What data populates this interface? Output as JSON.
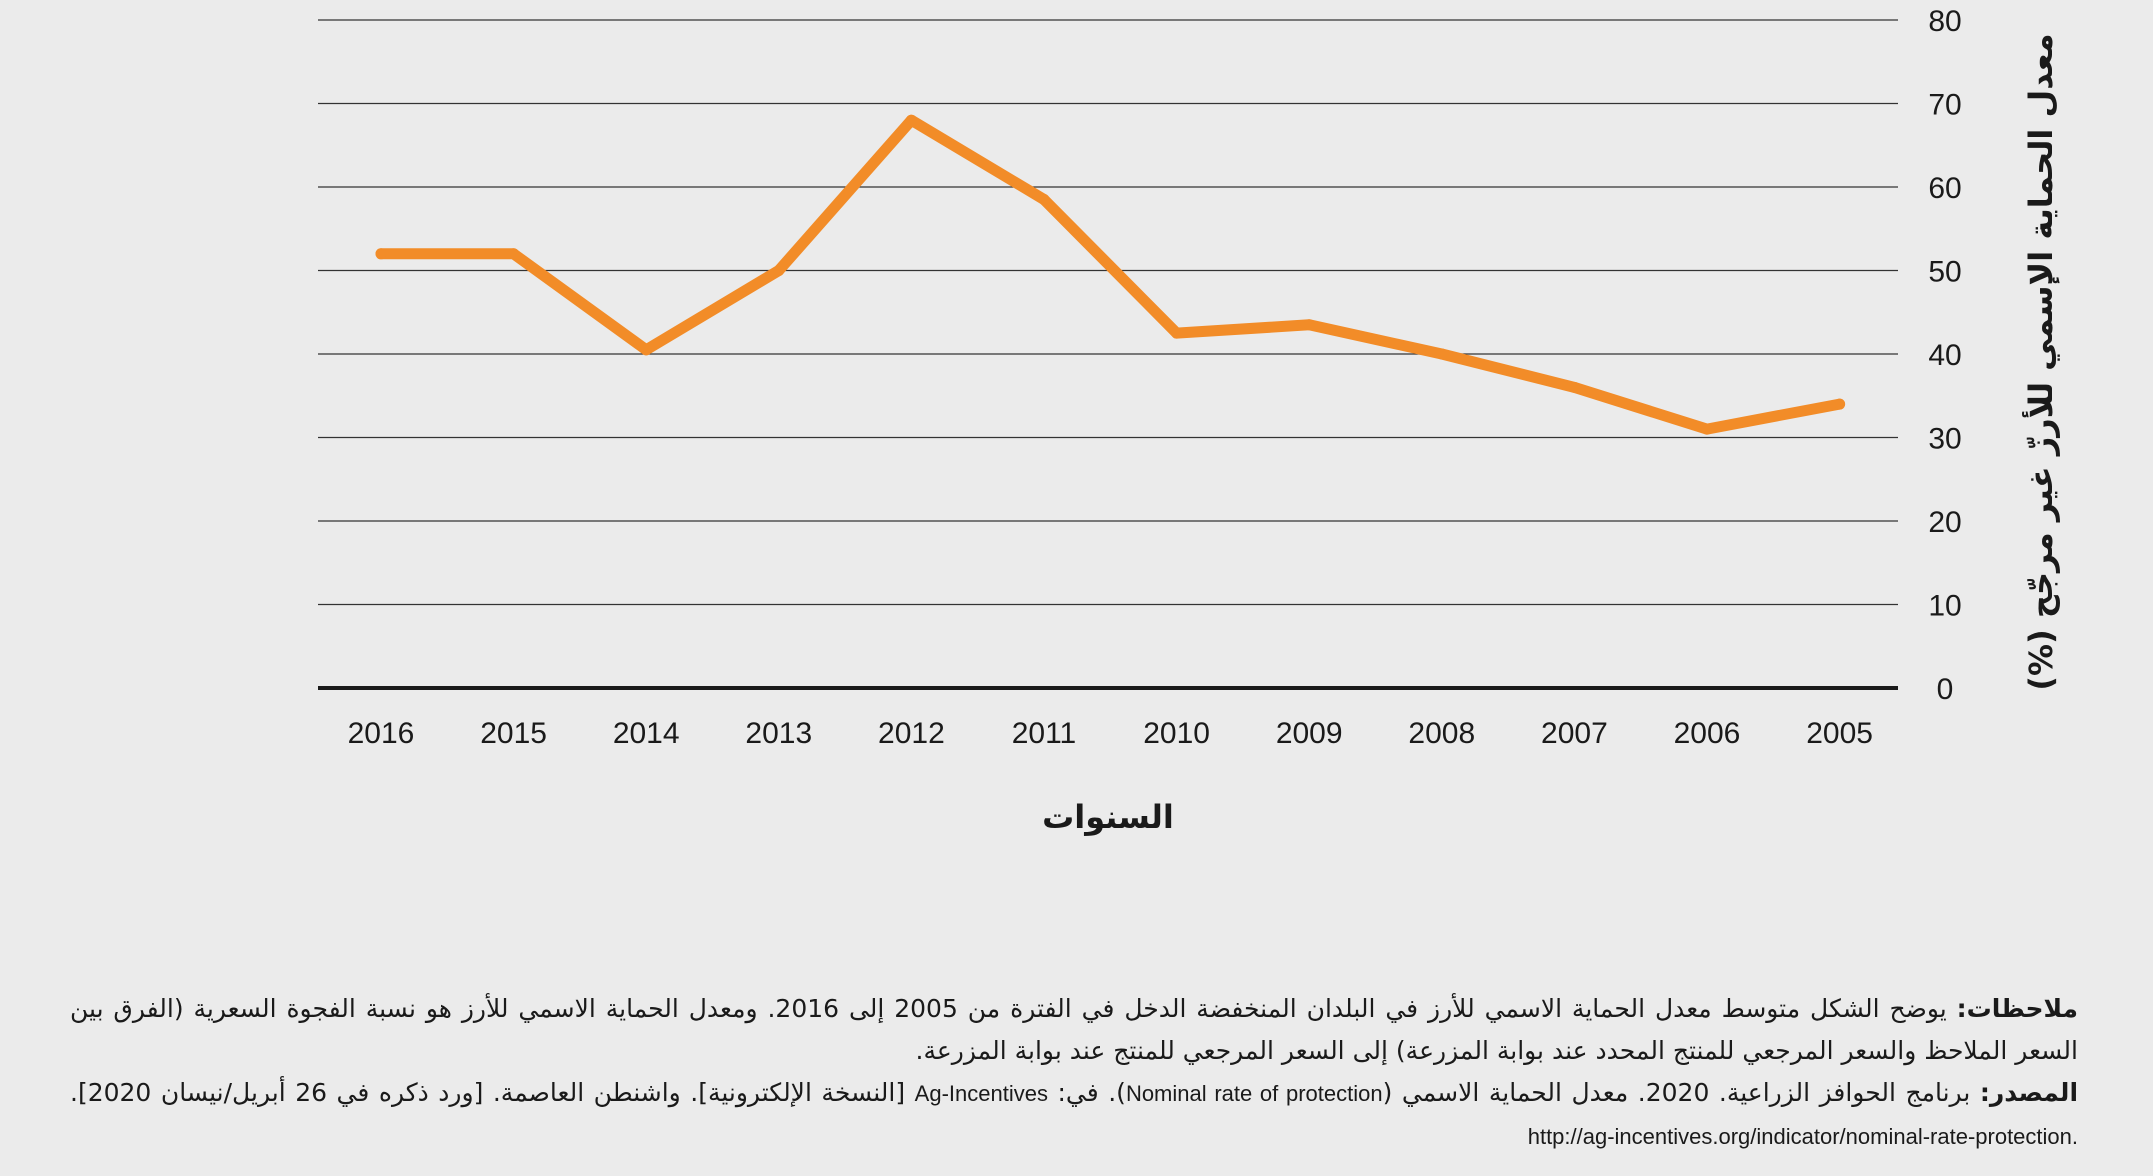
{
  "chart_data": {
    "type": "line",
    "title": "",
    "xlabel": "السنوات",
    "ylabel": "معدل الحماية الإسمي للأرزّ غير مرجّح (%)",
    "categories": [
      "2016",
      "2015",
      "2014",
      "2013",
      "2012",
      "2011",
      "2010",
      "2009",
      "2008",
      "2007",
      "2006",
      "2005"
    ],
    "series": [
      {
        "name": "معدل الحماية الاسمي للأرز",
        "values": [
          52,
          52,
          40.5,
          50,
          68,
          58.5,
          42.5,
          43.5,
          40,
          36,
          31,
          34
        ],
        "color": "#f28c28"
      }
    ],
    "ylim": [
      0,
      80
    ],
    "yticks": [
      "0",
      "10",
      "20",
      "30",
      "40",
      "50",
      "60",
      "70",
      "80"
    ],
    "grid": true,
    "legend": "none"
  },
  "colors": {
    "line": "#f28c28",
    "grid": "#333333",
    "axis": "#1a1a1a",
    "background": "#ebebeb"
  },
  "notes": {
    "label": "ملاحظات:",
    "text": " يوضح الشكل متوسط معدل الحماية الاسمي للأرز في البلدان المنخفضة الدخل في الفترة من 2005 إلى 2016. ومعدل الحماية الاسمي للأرز هو نسبة الفجوة السعرية (الفرق بين السعر الملاحظ والسعر المرجعي للمنتج المحدد عند بوابة المزرعة) إلى السعر المرجعي للمنتج عند بوابة المزرعة."
  },
  "source": {
    "label": "المصدر:",
    "part1": " برنامج الحوافز الزراعية. 2020. معدل الحماية الاسمي (",
    "nominal": "Nominal rate of protection",
    "part2": "). في: ",
    "agi": "Ag-Incentives",
    "part3": " [النسخة الإلكترونية]. واشنطن العاصمة. [ورد ذكره في 26 أبريل/نيسان 2020]. ",
    "url": "http://ag-incentives.org/indicator/nominal-rate-protection."
  }
}
